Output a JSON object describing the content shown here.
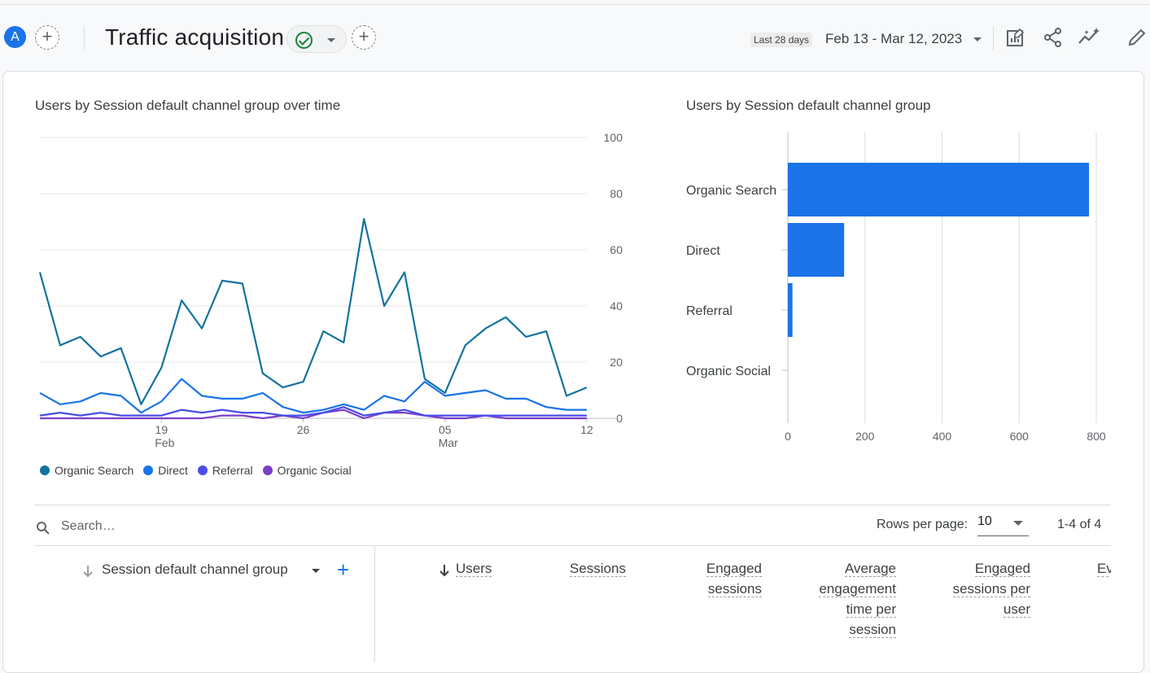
{
  "header": {
    "avatar_letter": "A",
    "title": "Traffic acquisition",
    "date_badge": "Last 28 days",
    "date_range": "Feb 13 - Mar 12, 2023"
  },
  "line_chart": {
    "title": "Users by Session default channel group over time",
    "chart_data": {
      "type": "line",
      "title": "Users by Session default channel group over time",
      "x_ticks": [
        {
          "label": "19",
          "sub": "Feb",
          "day": 6
        },
        {
          "label": "26",
          "sub": "",
          "day": 13
        },
        {
          "label": "05",
          "sub": "Mar",
          "day": 20
        },
        {
          "label": "12",
          "sub": "",
          "day": 27
        }
      ],
      "ylim": [
        0,
        100
      ],
      "y_ticks": [
        "100",
        "80",
        "60",
        "40",
        "20",
        "0"
      ],
      "series": [
        {
          "name": "Organic Search",
          "color": "#12739f",
          "values": [
            52,
            26,
            29,
            22,
            25,
            5,
            18,
            42,
            32,
            49,
            48,
            16,
            11,
            13,
            31,
            27,
            71,
            40,
            52,
            14,
            9,
            26,
            32,
            36,
            29,
            31,
            8,
            11
          ]
        },
        {
          "name": "Direct",
          "color": "#1a73e8",
          "values": [
            9,
            5,
            6,
            9,
            8,
            2,
            6,
            14,
            8,
            7,
            7,
            9,
            4,
            2,
            3,
            5,
            3,
            8,
            6,
            13,
            8,
            9,
            10,
            7,
            7,
            4,
            3,
            3
          ]
        },
        {
          "name": "Referral",
          "color": "#4a4de8",
          "values": [
            1,
            2,
            1,
            2,
            1,
            1,
            1,
            3,
            2,
            3,
            2,
            2,
            1,
            1,
            2,
            4,
            1,
            2,
            3,
            1,
            1,
            1,
            1,
            1,
            1,
            1,
            1,
            1
          ]
        },
        {
          "name": "Organic Social",
          "color": "#7b3ec9",
          "values": [
            0,
            0,
            0,
            0,
            0,
            0,
            0,
            0,
            0,
            1,
            1,
            0,
            1,
            0,
            2,
            3,
            0,
            2,
            2,
            1,
            0,
            0,
            1,
            0,
            0,
            0,
            0,
            0
          ]
        }
      ]
    }
  },
  "bar_chart": {
    "title": "Users by Session default channel group",
    "chart_data": {
      "type": "bar",
      "orientation": "horizontal",
      "title": "Users by Session default channel group",
      "categories": [
        "Organic Search",
        "Direct",
        "Referral",
        "Organic Social"
      ],
      "values": [
        781,
        146,
        12,
        0
      ],
      "xlim": [
        0,
        800
      ],
      "x_ticks": [
        "0",
        "200",
        "400",
        "600",
        "800"
      ],
      "color": "#1a73e8"
    }
  },
  "table": {
    "search_placeholder": "Search…",
    "rows_per_page_label": "Rows per page:",
    "rows_per_page_value": "10",
    "pagination": "1-4 of 4",
    "dimension_header": "Session default channel group",
    "columns": [
      {
        "lines": [
          "Users"
        ],
        "sorted": true
      },
      {
        "lines": [
          "Sessions"
        ]
      },
      {
        "lines": [
          "Engaged",
          "sessions"
        ]
      },
      {
        "lines": [
          "Average",
          "engagement",
          "time per",
          "session"
        ]
      },
      {
        "lines": [
          "Engaged",
          "sessions per",
          "user"
        ]
      },
      {
        "lines": [
          "Ev"
        ]
      }
    ]
  }
}
